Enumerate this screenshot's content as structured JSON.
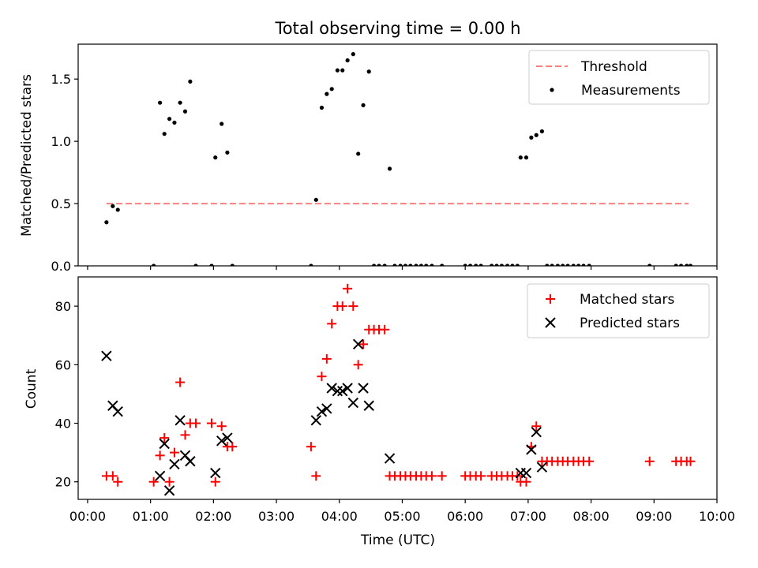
{
  "chart_data": [
    {
      "type": "scatter",
      "title": "Total observing time = 0.00 h",
      "xlabel": "",
      "ylabel": "Matched/Predicted stars",
      "xlim": [
        -0.15,
        10.0
      ],
      "ylim": [
        0.0,
        1.78
      ],
      "yticks": [
        "0.0",
        "0.5",
        "1.0",
        "1.5"
      ],
      "ytick_values": [
        0.0,
        0.5,
        1.0,
        1.5
      ],
      "legend_position": "top-right",
      "threshold": {
        "name": "Threshold",
        "value": 0.5,
        "x": [
          0.3,
          9.55
        ],
        "color": "#ff7f7f",
        "style": "dashed"
      },
      "series": [
        {
          "name": "Measurements",
          "color": "#000000",
          "marker": "dot",
          "points": [
            [
              0.3,
              0.35
            ],
            [
              0.4,
              0.48
            ],
            [
              0.48,
              0.45
            ],
            [
              1.05,
              0.0
            ],
            [
              1.15,
              1.31
            ],
            [
              1.22,
              1.06
            ],
            [
              1.3,
              1.18
            ],
            [
              1.38,
              1.15
            ],
            [
              1.47,
              1.31
            ],
            [
              1.55,
              1.24
            ],
            [
              1.63,
              1.48
            ],
            [
              1.72,
              0.0
            ],
            [
              1.97,
              0.0
            ],
            [
              2.03,
              0.87
            ],
            [
              2.13,
              1.14
            ],
            [
              2.22,
              0.91
            ],
            [
              2.3,
              0.0
            ],
            [
              3.55,
              0.0
            ],
            [
              3.63,
              0.53
            ],
            [
              3.72,
              1.27
            ],
            [
              3.8,
              1.38
            ],
            [
              3.88,
              1.42
            ],
            [
              3.97,
              1.57
            ],
            [
              4.05,
              1.57
            ],
            [
              4.13,
              1.65
            ],
            [
              4.22,
              1.7
            ],
            [
              4.3,
              0.9
            ],
            [
              4.38,
              1.29
            ],
            [
              4.47,
              1.56
            ],
            [
              4.55,
              0.0
            ],
            [
              4.63,
              0.0
            ],
            [
              4.72,
              0.0
            ],
            [
              4.8,
              0.78
            ],
            [
              4.88,
              0.0
            ],
            [
              4.97,
              0.0
            ],
            [
              5.05,
              0.0
            ],
            [
              5.13,
              0.0
            ],
            [
              5.22,
              0.0
            ],
            [
              5.3,
              0.0
            ],
            [
              5.38,
              0.0
            ],
            [
              5.47,
              0.0
            ],
            [
              5.63,
              0.0
            ],
            [
              6.0,
              0.0
            ],
            [
              6.08,
              0.0
            ],
            [
              6.17,
              0.0
            ],
            [
              6.25,
              0.0
            ],
            [
              6.42,
              0.0
            ],
            [
              6.5,
              0.0
            ],
            [
              6.58,
              0.0
            ],
            [
              6.67,
              0.0
            ],
            [
              6.75,
              0.0
            ],
            [
              6.83,
              0.0
            ],
            [
              6.88,
              0.87
            ],
            [
              6.97,
              0.87
            ],
            [
              7.05,
              1.03
            ],
            [
              7.13,
              1.05
            ],
            [
              7.22,
              1.08
            ],
            [
              7.3,
              0.0
            ],
            [
              7.38,
              0.0
            ],
            [
              7.47,
              0.0
            ],
            [
              7.55,
              0.0
            ],
            [
              7.63,
              0.0
            ],
            [
              7.72,
              0.0
            ],
            [
              7.8,
              0.0
            ],
            [
              7.88,
              0.0
            ],
            [
              7.97,
              0.0
            ],
            [
              8.93,
              0.0
            ],
            [
              9.35,
              0.0
            ],
            [
              9.43,
              0.0
            ],
            [
              9.52,
              0.0
            ],
            [
              9.58,
              0.0
            ]
          ]
        }
      ]
    },
    {
      "type": "scatter",
      "title": "",
      "xlabel": "Time (UTC)",
      "ylabel": "Count",
      "xlim": [
        -0.15,
        10.0
      ],
      "ylim": [
        14.0,
        90.0
      ],
      "xticks": [
        "00:00",
        "01:00",
        "02:00",
        "03:00",
        "04:00",
        "05:00",
        "06:00",
        "07:00",
        "08:00",
        "09:00",
        "10:00"
      ],
      "xtick_values": [
        0,
        1,
        2,
        3,
        4,
        5,
        6,
        7,
        8,
        9,
        10
      ],
      "yticks": [
        "20",
        "40",
        "60",
        "80"
      ],
      "ytick_values": [
        20,
        40,
        60,
        80
      ],
      "legend_position": "top-right",
      "series": [
        {
          "name": "Matched stars",
          "color": "#ff0000",
          "marker": "plus",
          "points": [
            [
              0.3,
              22
            ],
            [
              0.4,
              22
            ],
            [
              0.48,
              20
            ],
            [
              1.05,
              20
            ],
            [
              1.15,
              29
            ],
            [
              1.22,
              35
            ],
            [
              1.3,
              20
            ],
            [
              1.38,
              30
            ],
            [
              1.47,
              54
            ],
            [
              1.55,
              36
            ],
            [
              1.63,
              40
            ],
            [
              1.72,
              40
            ],
            [
              1.97,
              40
            ],
            [
              2.03,
              20
            ],
            [
              2.13,
              39
            ],
            [
              2.22,
              32
            ],
            [
              2.3,
              32
            ],
            [
              3.55,
              32
            ],
            [
              3.63,
              22
            ],
            [
              3.72,
              56
            ],
            [
              3.8,
              62
            ],
            [
              3.88,
              74
            ],
            [
              3.97,
              80
            ],
            [
              4.05,
              80
            ],
            [
              4.13,
              86
            ],
            [
              4.22,
              80
            ],
            [
              4.3,
              60
            ],
            [
              4.38,
              67
            ],
            [
              4.47,
              72
            ],
            [
              4.55,
              72
            ],
            [
              4.63,
              72
            ],
            [
              4.72,
              72
            ],
            [
              4.8,
              22
            ],
            [
              4.88,
              22
            ],
            [
              4.97,
              22
            ],
            [
              5.05,
              22
            ],
            [
              5.13,
              22
            ],
            [
              5.22,
              22
            ],
            [
              5.3,
              22
            ],
            [
              5.38,
              22
            ],
            [
              5.47,
              22
            ],
            [
              5.63,
              22
            ],
            [
              6.0,
              22
            ],
            [
              6.08,
              22
            ],
            [
              6.17,
              22
            ],
            [
              6.25,
              22
            ],
            [
              6.42,
              22
            ],
            [
              6.5,
              22
            ],
            [
              6.58,
              22
            ],
            [
              6.67,
              22
            ],
            [
              6.75,
              22
            ],
            [
              6.83,
              22
            ],
            [
              6.88,
              20
            ],
            [
              6.97,
              20
            ],
            [
              7.05,
              32
            ],
            [
              7.13,
              39
            ],
            [
              7.22,
              27
            ],
            [
              7.3,
              27
            ],
            [
              7.38,
              27
            ],
            [
              7.47,
              27
            ],
            [
              7.55,
              27
            ],
            [
              7.63,
              27
            ],
            [
              7.72,
              27
            ],
            [
              7.8,
              27
            ],
            [
              7.88,
              27
            ],
            [
              7.97,
              27
            ],
            [
              8.93,
              27
            ],
            [
              9.35,
              27
            ],
            [
              9.43,
              27
            ],
            [
              9.52,
              27
            ],
            [
              9.58,
              27
            ]
          ]
        },
        {
          "name": "Predicted stars",
          "color": "#000000",
          "marker": "x",
          "points": [
            [
              0.3,
              63
            ],
            [
              0.4,
              46
            ],
            [
              0.48,
              44
            ],
            [
              1.15,
              22
            ],
            [
              1.22,
              33
            ],
            [
              1.3,
              17
            ],
            [
              1.38,
              26
            ],
            [
              1.47,
              41
            ],
            [
              1.55,
              29
            ],
            [
              1.63,
              27
            ],
            [
              2.03,
              23
            ],
            [
              2.13,
              34
            ],
            [
              2.22,
              35
            ],
            [
              3.63,
              41
            ],
            [
              3.72,
              44
            ],
            [
              3.8,
              45
            ],
            [
              3.88,
              52
            ],
            [
              3.97,
              51
            ],
            [
              4.05,
              51
            ],
            [
              4.13,
              52
            ],
            [
              4.22,
              47
            ],
            [
              4.3,
              67
            ],
            [
              4.38,
              52
            ],
            [
              4.47,
              46
            ],
            [
              4.8,
              28
            ],
            [
              6.88,
              23
            ],
            [
              6.97,
              23
            ],
            [
              7.05,
              31
            ],
            [
              7.13,
              37
            ],
            [
              7.22,
              25
            ]
          ]
        }
      ]
    }
  ]
}
